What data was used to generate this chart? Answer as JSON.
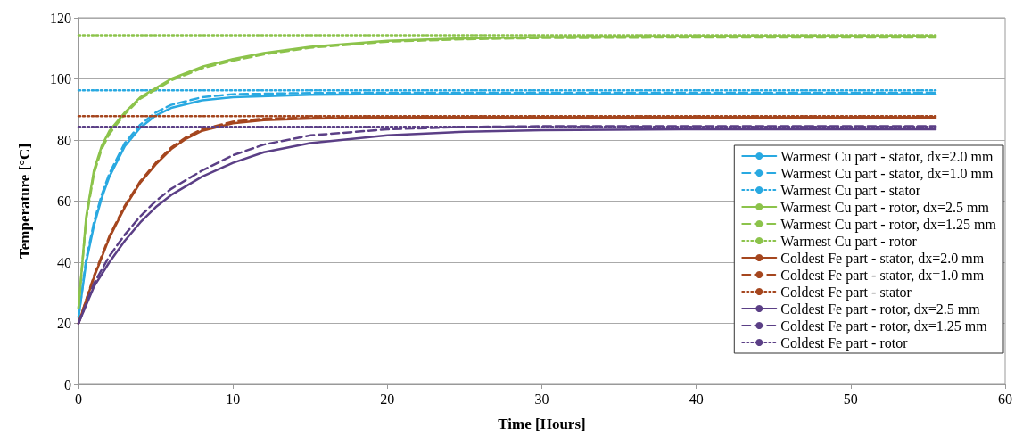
{
  "chart_data": {
    "type": "line",
    "xlabel": "Time [Hours]",
    "ylabel": "Temperature [°C]",
    "xlim": [
      0,
      60
    ],
    "xticks": [
      0,
      10,
      20,
      30,
      40,
      50,
      60
    ],
    "ylim": [
      0,
      120
    ],
    "yticks": [
      0,
      20,
      40,
      60,
      80,
      100,
      120
    ],
    "grid": "y",
    "legend": "right",
    "marker": "none",
    "series": [
      {
        "name": "Warmest Cu part - stator, dx=2.0 mm",
        "color": "#29a9e1",
        "line_style": "solid",
        "x": [
          0,
          0.5,
          1,
          1.5,
          2,
          3,
          4,
          5,
          6,
          8,
          10,
          15,
          20,
          30,
          55.5
        ],
        "values": [
          22,
          40,
          52,
          61,
          68,
          78,
          84,
          88,
          90.5,
          93,
          94,
          94.8,
          95,
          95,
          95
        ]
      },
      {
        "name": "Warmest Cu part - stator, dx=1.0 mm",
        "color": "#29a9e1",
        "line_style": "dashed",
        "x": [
          0,
          0.5,
          1,
          1.5,
          2,
          3,
          4,
          5,
          6,
          8,
          10,
          15,
          20,
          30,
          55.5
        ],
        "values": [
          22,
          41,
          53,
          62,
          69,
          79,
          85,
          89,
          91.5,
          94,
          95,
          95.4,
          95.5,
          95.5,
          95.5
        ]
      },
      {
        "name": "Warmest Cu part - stator",
        "color": "#29a9e1",
        "line_style": "dotted",
        "x": [
          0,
          55.5
        ],
        "values": [
          96.3,
          96.3
        ]
      },
      {
        "name": "Warmest Cu part - rotor, dx=2.5 mm",
        "color": "#8cc34b",
        "line_style": "solid",
        "x": [
          0,
          0.5,
          1,
          1.5,
          2,
          3,
          4,
          5,
          6,
          8,
          10,
          12,
          15,
          20,
          25,
          30,
          40,
          55.5
        ],
        "values": [
          25,
          55,
          70,
          78,
          83,
          89,
          94,
          97,
          100,
          104,
          106.5,
          108.5,
          110.5,
          112.5,
          113.3,
          113.7,
          114,
          114
        ]
      },
      {
        "name": "Warmest Cu part - rotor, dx=1.25 mm",
        "color": "#8cc34b",
        "line_style": "dashed",
        "x": [
          0,
          0.5,
          1,
          1.5,
          2,
          3,
          4,
          5,
          6,
          8,
          10,
          12,
          15,
          20,
          25,
          30,
          40,
          55.5
        ],
        "values": [
          25,
          54,
          69,
          77,
          82,
          88.5,
          93.5,
          96.5,
          99.5,
          103.5,
          106,
          108,
          110.2,
          112.2,
          113,
          113.4,
          113.6,
          113.6
        ]
      },
      {
        "name": "Warmest Cu part - rotor",
        "color": "#8cc34b",
        "line_style": "dotted",
        "x": [
          0,
          55.5
        ],
        "values": [
          114.3,
          114.3
        ]
      },
      {
        "name": "Coldest Fe part - stator, dx=2.0 mm",
        "color": "#a5461e",
        "line_style": "solid",
        "x": [
          0,
          1,
          2,
          3,
          4,
          5,
          6,
          7,
          8,
          10,
          12,
          15,
          20,
          55.5
        ],
        "values": [
          20,
          35,
          48,
          58,
          66,
          72,
          77,
          80.5,
          83,
          85.5,
          86.5,
          87,
          87.3,
          87.3
        ]
      },
      {
        "name": "Coldest Fe part - stator, dx=1.0 mm",
        "color": "#a5461e",
        "line_style": "dashed",
        "x": [
          0,
          1,
          2,
          3,
          4,
          5,
          6,
          7,
          8,
          10,
          12,
          15,
          20,
          55.5
        ],
        "values": [
          20,
          35.5,
          48.5,
          58.5,
          66.5,
          72.5,
          77.5,
          81,
          83.5,
          86,
          87,
          87.3,
          87.5,
          87.5
        ]
      },
      {
        "name": "Coldest Fe part - stator",
        "color": "#a5461e",
        "line_style": "dotted",
        "x": [
          0,
          55.5
        ],
        "values": [
          87.8,
          87.8
        ]
      },
      {
        "name": "Coldest Fe part - rotor, dx=2.5 mm",
        "color": "#5b3f86",
        "line_style": "solid",
        "x": [
          0,
          1,
          2,
          3,
          4,
          5,
          6,
          8,
          10,
          12,
          15,
          20,
          25,
          30,
          40,
          55.5
        ],
        "values": [
          20,
          32,
          40,
          47,
          53,
          58,
          62,
          68,
          72.5,
          76,
          79,
          81.5,
          82.7,
          83.2,
          83.5,
          83.5
        ]
      },
      {
        "name": "Coldest Fe part - rotor, dx=1.25 mm",
        "color": "#5b3f86",
        "line_style": "dashed",
        "x": [
          0,
          1,
          2,
          3,
          4,
          5,
          6,
          8,
          10,
          12,
          15,
          20,
          25,
          30,
          55.5
        ],
        "values": [
          20,
          33,
          42,
          49,
          55,
          60,
          64,
          70,
          75,
          78.5,
          81.5,
          83.5,
          84.3,
          84.5,
          84.5
        ]
      },
      {
        "name": "Coldest Fe part - rotor",
        "color": "#5b3f86",
        "line_style": "dotted",
        "x": [
          0,
          55.5
        ],
        "values": [
          84.3,
          84.3
        ]
      }
    ]
  }
}
